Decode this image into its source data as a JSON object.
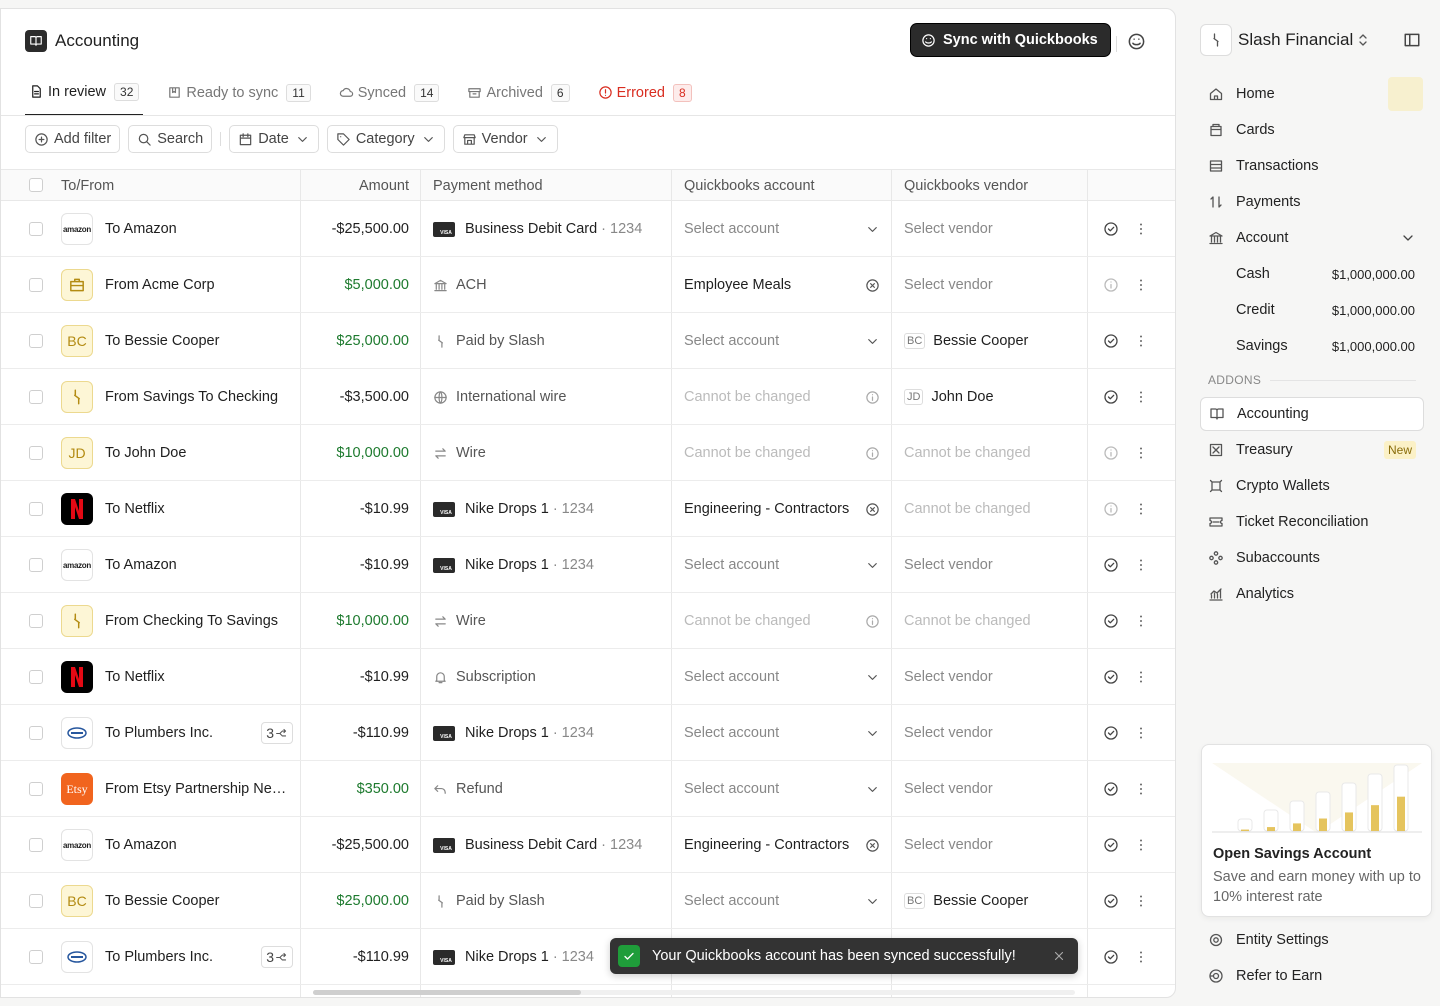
{
  "header": {
    "title": "Accounting",
    "sync_button": "Sync with Quickbooks"
  },
  "tabs": [
    {
      "label": "In review",
      "count": "32",
      "icon": "doc",
      "active": true
    },
    {
      "label": "Ready to sync",
      "count": "11",
      "icon": "bookmark"
    },
    {
      "label": "Synced",
      "count": "14",
      "icon": "cloud"
    },
    {
      "label": "Archived",
      "count": "6",
      "icon": "archive"
    },
    {
      "label": "Errored",
      "count": "8",
      "icon": "alert",
      "color": "#d92d20"
    }
  ],
  "filters": [
    {
      "label": "Add filter",
      "icon": "plus"
    },
    {
      "label": "Search",
      "icon": "search"
    },
    {
      "label": "Date",
      "icon": "calendar",
      "dropdown": true
    },
    {
      "label": "Category",
      "icon": "tag",
      "dropdown": true
    },
    {
      "label": "Vendor",
      "icon": "store",
      "dropdown": true
    }
  ],
  "table": {
    "columns": [
      "To/From",
      "Amount",
      "Payment method",
      "Quickbooks account",
      "Quickbooks vendor"
    ],
    "rows": [
      {
        "avatar_icon": "amazon",
        "avatar": "amazon",
        "name": "To Amazon",
        "amount": "-$25,500.00",
        "amount_color": "#1f1f1f",
        "method_icon": "visa",
        "method": "Business Debit Card",
        "card": "· 1234",
        "account": "Select account",
        "account_state": "placeholder",
        "vendor": "Select vendor",
        "vendor_state": "placeholder",
        "status": "check"
      },
      {
        "avatar_icon": "briefcase",
        "name": "From Acme Corp",
        "amount": "$5,000.00",
        "amount_color": "#1d7a2e",
        "method_icon": "bank",
        "method": "ACH",
        "account": "Employee Meals",
        "account_state": "selected",
        "vendor": "Select vendor",
        "vendor_state": "placeholder",
        "status": "info"
      },
      {
        "avatar_icon": "initials",
        "avatar": "BC",
        "name": "To Bessie Cooper",
        "amount": "$25,000.00",
        "amount_color": "#1d7a2e",
        "method_icon": "slash",
        "method": "Paid by Slash",
        "account": "Select account",
        "account_state": "placeholder",
        "vendor_initials": "BC",
        "vendor": "Bessie Cooper",
        "vendor_state": "selected",
        "status": "check"
      },
      {
        "avatar_icon": "slash",
        "name": "From Savings To Checking",
        "amount": "-$3,500.00",
        "amount_color": "#1f1f1f",
        "method_icon": "globe",
        "method": "International wire",
        "account": "Cannot be changed",
        "account_state": "disabled",
        "vendor_initials": "JD",
        "vendor": "John Doe",
        "vendor_state": "selected",
        "status": "check"
      },
      {
        "avatar_icon": "initials",
        "avatar": "JD",
        "name": "To John Doe",
        "amount": "$10,000.00",
        "amount_color": "#1d7a2e",
        "method_icon": "swap",
        "method": "Wire",
        "account": "Cannot be changed",
        "account_state": "disabled",
        "vendor": "Cannot be changed",
        "vendor_state": "disabled",
        "status": "info"
      },
      {
        "avatar_icon": "netflix",
        "name": "To Netflix",
        "amount": "-$10.99",
        "amount_color": "#1f1f1f",
        "method_icon": "visa",
        "method": "Nike Drops 1",
        "card": "· 1234",
        "account": "Engineering - Contractors",
        "account_state": "selected",
        "vendor": "Cannot be changed",
        "vendor_state": "disabled",
        "status": "info"
      },
      {
        "avatar_icon": "amazon",
        "avatar": "amazon",
        "name": "To Amazon",
        "amount": "-$10.99",
        "amount_color": "#1f1f1f",
        "method_icon": "visa",
        "method": "Nike Drops 1",
        "card": "· 1234",
        "account": "Select account",
        "account_state": "placeholder",
        "vendor": "Select vendor",
        "vendor_state": "placeholder",
        "status": "check"
      },
      {
        "avatar_icon": "slash",
        "name": "From Checking To Savings",
        "amount": "$10,000.00",
        "amount_color": "#1d7a2e",
        "method_icon": "swap",
        "method": "Wire",
        "account": "Cannot be changed",
        "account_state": "disabled",
        "vendor": "Cannot be changed",
        "vendor_state": "disabled",
        "status": "check"
      },
      {
        "avatar_icon": "netflix",
        "name": "To Netflix",
        "amount": "-$10.99",
        "amount_color": "#1f1f1f",
        "method_icon": "bell",
        "method": "Subscription",
        "account": "Select account",
        "account_state": "placeholder",
        "vendor": "Select vendor",
        "vendor_state": "placeholder",
        "status": "check"
      },
      {
        "avatar_icon": "plumbers",
        "name": "To Plumbers Inc.",
        "badge": "3",
        "amount": "-$110.99",
        "amount_color": "#1f1f1f",
        "method_icon": "visa",
        "method": "Nike Drops 1",
        "card": "· 1234",
        "account": "Select account",
        "account_state": "placeholder",
        "vendor": "Select vendor",
        "vendor_state": "placeholder",
        "status": "check"
      },
      {
        "avatar_icon": "etsy",
        "avatar": "Etsy",
        "name": "From Etsy Partnership Ne…",
        "amount": "$350.00",
        "amount_color": "#1d7a2e",
        "method_icon": "undo",
        "method": "Refund",
        "account": "Select account",
        "account_state": "placeholder",
        "vendor": "Select vendor",
        "vendor_state": "placeholder",
        "status": "check"
      },
      {
        "avatar_icon": "amazon",
        "avatar": "amazon",
        "name": "To Amazon",
        "amount": "-$25,500.00",
        "amount_color": "#1f1f1f",
        "method_icon": "visa",
        "method": "Business Debit Card",
        "card": "· 1234",
        "account": "Engineering - Contractors",
        "account_state": "selected",
        "vendor": "Select vendor",
        "vendor_state": "placeholder",
        "status": "check"
      },
      {
        "avatar_icon": "initials",
        "avatar": "BC",
        "name": "To Bessie Cooper",
        "amount": "$25,000.00",
        "amount_color": "#1d7a2e",
        "method_icon": "slash",
        "method": "Paid by Slash",
        "account": "Select account",
        "account_state": "placeholder",
        "vendor_initials": "BC",
        "vendor": "Bessie Cooper",
        "vendor_state": "selected",
        "status": "check"
      },
      {
        "avatar_icon": "plumbers",
        "name": "To Plumbers Inc.",
        "badge": "3",
        "amount": "-$110.99",
        "amount_color": "#1f1f1f",
        "method_icon": "visa",
        "method": "Nike Drops 1",
        "card": "· 1234",
        "status": "check"
      }
    ]
  },
  "toast": "Your Quickbooks account has been synced successfully!",
  "sidebar": {
    "org": "Slash Financial",
    "nav": [
      {
        "label": "Home",
        "icon": "home"
      },
      {
        "label": "Cards",
        "icon": "card"
      },
      {
        "label": "Transactions",
        "icon": "list"
      },
      {
        "label": "Payments",
        "icon": "arrows"
      },
      {
        "label": "Account",
        "icon": "bank",
        "expandable": true
      }
    ],
    "accounts": [
      {
        "label": "Cash",
        "value": "$1,000,000.00"
      },
      {
        "label": "Credit",
        "value": "$1,000,000.00"
      },
      {
        "label": "Savings",
        "value": "$1,000,000.00"
      }
    ],
    "section": "ADDONS",
    "addons": [
      {
        "label": "Accounting",
        "icon": "book",
        "active": true
      },
      {
        "label": "Treasury",
        "icon": "treasury",
        "badge": "New"
      },
      {
        "label": "Crypto Wallets",
        "icon": "crypto"
      },
      {
        "label": "Ticket Reconciliation",
        "icon": "ticket"
      },
      {
        "label": "Subaccounts",
        "icon": "nodes"
      },
      {
        "label": "Analytics",
        "icon": "chart"
      }
    ],
    "promo": {
      "title": "Open Savings Account",
      "text": "Save and earn money with up to 10% interest rate"
    },
    "footer": [
      {
        "label": "Entity Settings",
        "icon": "gear"
      },
      {
        "label": "Refer to Earn",
        "icon": "refer"
      }
    ]
  }
}
